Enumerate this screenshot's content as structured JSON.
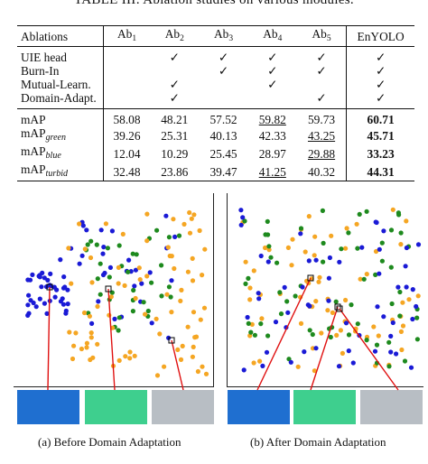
{
  "table_title": "TABLE III: Ablation studies on various modules.",
  "columns": [
    "Ablations",
    "Ab1",
    "Ab2",
    "Ab3",
    "Ab4",
    "Ab5",
    "EnYOLO"
  ],
  "check_glyph": "✓",
  "module_rows": [
    {
      "label": "UIE head",
      "checks": [
        false,
        true,
        true,
        true,
        true,
        true
      ]
    },
    {
      "label": "Burn-In",
      "checks": [
        false,
        false,
        true,
        true,
        true,
        true
      ]
    },
    {
      "label": "Mutual-Learn.",
      "checks": [
        false,
        true,
        false,
        true,
        false,
        true
      ]
    },
    {
      "label": "Domain-Adapt.",
      "checks": [
        false,
        true,
        false,
        false,
        true,
        true
      ]
    }
  ],
  "metric_rows": [
    {
      "label": "mAP",
      "sub": "",
      "values": [
        "58.08",
        "48.21",
        "57.52",
        "59.82",
        "59.73",
        "60.71"
      ],
      "underline": [
        3
      ],
      "bold": [
        5
      ]
    },
    {
      "label": "mAP",
      "sub": "green",
      "values": [
        "39.26",
        "25.31",
        "40.13",
        "42.33",
        "43.25",
        "45.71"
      ],
      "underline": [
        4
      ],
      "bold": [
        5
      ]
    },
    {
      "label": "mAP",
      "sub": "blue",
      "values": [
        "12.04",
        "10.29",
        "25.45",
        "28.97",
        "29.88",
        "33.23"
      ],
      "underline": [
        4
      ],
      "bold": [
        5
      ]
    },
    {
      "label": "mAP",
      "sub": "turbid",
      "values": [
        "32.48",
        "23.86",
        "39.47",
        "41.25",
        "40.32",
        "44.31"
      ],
      "underline": [
        3
      ],
      "bold": [
        5
      ]
    }
  ],
  "panel_a_caption": "(a) Before Domain Adaptation",
  "panel_b_caption": "(b) After Domain Adaptation",
  "colors": {
    "blue": "#1a1ad6",
    "green": "#1e8a1e",
    "orange": "#f5a623",
    "leader": "#e01010",
    "thumb_blue": "#1f6fd0",
    "thumb_green": "#3ecf8e",
    "thumb_turbid": "#b8bec4"
  }
}
